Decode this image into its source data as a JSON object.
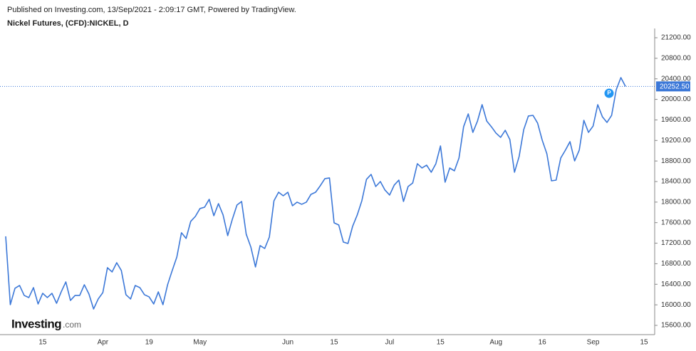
{
  "header": {
    "published": "Published on Investing.com, 13/Sep/2021 - 2:09:17 GMT, Powered by TradingView."
  },
  "watermark": {
    "brand": "Investing",
    "suffix": ".com"
  },
  "chart_data": {
    "type": "line",
    "title": "Nickel Futures, (CFD):NICKEL, D",
    "color": "#3c78d8",
    "grid": false,
    "categories": [
      null,
      null,
      null,
      null,
      null,
      null,
      null,
      null,
      "15",
      null,
      null,
      null,
      null,
      null,
      null,
      null,
      null,
      null,
      null,
      null,
      null,
      "Apr",
      null,
      null,
      null,
      null,
      null,
      null,
      null,
      null,
      null,
      "19",
      null,
      null,
      null,
      null,
      null,
      null,
      null,
      null,
      null,
      null,
      "May",
      null,
      null,
      null,
      null,
      null,
      null,
      null,
      null,
      null,
      null,
      null,
      null,
      null,
      null,
      null,
      null,
      null,
      null,
      "Jun",
      null,
      null,
      null,
      null,
      null,
      null,
      null,
      null,
      null,
      "15",
      null,
      null,
      null,
      null,
      null,
      null,
      null,
      null,
      null,
      null,
      null,
      "Jul",
      null,
      null,
      null,
      null,
      null,
      null,
      null,
      null,
      null,
      null,
      "15",
      null,
      null,
      null,
      null,
      null,
      null,
      null,
      null,
      null,
      null,
      null,
      "Aug",
      null,
      null,
      null,
      null,
      null,
      null,
      null,
      null,
      null,
      "16",
      null,
      null,
      null,
      null,
      null,
      null,
      null,
      null,
      null,
      null,
      "Sep",
      null,
      null,
      null,
      null,
      null,
      null,
      null,
      null,
      null,
      null,
      "15"
    ],
    "values": [
      17333,
      16003,
      16321,
      16377,
      16183,
      16141,
      16335,
      16017,
      16224,
      16141,
      16224,
      16030,
      16252,
      16446,
      16086,
      16183,
      16183,
      16391,
      16210,
      15919,
      16114,
      16238,
      16723,
      16640,
      16820,
      16668,
      16197,
      16114,
      16377,
      16335,
      16197,
      16155,
      16017,
      16252,
      16003,
      16391,
      16668,
      16931,
      17403,
      17292,
      17624,
      17721,
      17874,
      17901,
      18054,
      17735,
      17970,
      17749,
      17347,
      17666,
      17943,
      18012,
      17375,
      17125,
      16737,
      17153,
      17097,
      17319,
      18026,
      18192,
      18123,
      18192,
      17929,
      17999,
      17957,
      17999,
      18151,
      18192,
      18317,
      18456,
      18470,
      17596,
      17555,
      17222,
      17194,
      17527,
      17749,
      18026,
      18442,
      18539,
      18303,
      18400,
      18234,
      18137,
      18331,
      18428,
      18012,
      18303,
      18373,
      18747,
      18664,
      18719,
      18581,
      18747,
      19093,
      18387,
      18664,
      18608,
      18858,
      19468,
      19717,
      19357,
      19578,
      19897,
      19578,
      19468,
      19343,
      19260,
      19398,
      19218,
      18581,
      18886,
      19412,
      19676,
      19689,
      19537,
      19204,
      18941,
      18414,
      18428,
      18858,
      19010,
      19177,
      18802,
      19010,
      19592,
      19357,
      19481,
      19897,
      19662,
      19551,
      19689,
      20188,
      20424,
      20252.5,
      null,
      null,
      null,
      null
    ],
    "last_price": {
      "value": 20252.5,
      "label": "20252.50"
    },
    "ylim": [
      15400,
      21400
    ],
    "yticks": [
      {
        "value": 15600,
        "label": "15600.00"
      },
      {
        "value": 16000,
        "label": "16000.00"
      },
      {
        "value": 16400,
        "label": "16400.00"
      },
      {
        "value": 16800,
        "label": "16800.00"
      },
      {
        "value": 17200,
        "label": "17200.00"
      },
      {
        "value": 17600,
        "label": "17600.00"
      },
      {
        "value": 18000,
        "label": "18000.00"
      },
      {
        "value": 18400,
        "label": "18400.00"
      },
      {
        "value": 18800,
        "label": "18800.00"
      },
      {
        "value": 19200,
        "label": "19200.00"
      },
      {
        "value": 19600,
        "label": "19600.00"
      },
      {
        "value": 20000,
        "label": "20000.00"
      },
      {
        "value": 20400,
        "label": "20400.00"
      },
      {
        "value": 20800,
        "label": "20800.00"
      },
      {
        "value": 21200,
        "label": "21200.00"
      }
    ]
  }
}
